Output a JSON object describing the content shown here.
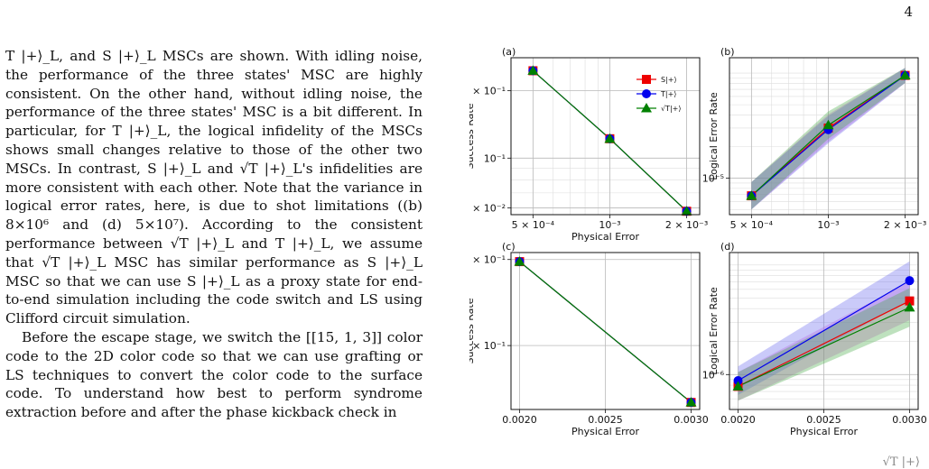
{
  "page_number": "4",
  "paragraphs": [
    "T |+⟩_L, and S |+⟩_L MSCs are shown. With idling noise, the performance of the three states' MSC are highly consistent. On the other hand, without idling noise, the performance of the three states' MSC is a bit different. In particular, for T |+⟩_L, the logical infidelity of the MSCs shows small changes relative to those of the other two MSCs. In contrast, S |+⟩_L and √T |+⟩_L's infidelities are more consistent with each other. Note that the variance in logical error rates, here, is due to shot limitations ((b) 8×10⁶ and (d) 5×10⁷). According to the consistent performance between √T |+⟩_L and T |+⟩_L, we assume that √T |+⟩_L MSC has similar performance as S |+⟩_L MSC so that we can use S |+⟩_L as a proxy state for end-to-end simulation including the code switch and LS using Clifford circuit simulation.",
    "Before the escape stage, we switch the [[15, 1, 3]] color code to the 2D color code so that we can use grafting or LS techniques to convert the color code to the surface code. To understand how best to perform syndrome extraction before and after the phase kickback check in"
  ],
  "bottom_fragment": "√T |+⟩",
  "chart_data": [
    {
      "panel": "(a)",
      "type": "line",
      "xscale": "log",
      "yscale": "log",
      "xlabel": "Physical Error",
      "ylabel": "Success Rate",
      "xlim": [
        0.00041,
        0.00225
      ],
      "ylim": [
        0.056,
        0.28
      ],
      "xticks": [
        {
          "v": 0.0005,
          "t": "5 × 10⁻⁴"
        },
        {
          "v": 0.001,
          "t": "10⁻³"
        },
        {
          "v": 0.002,
          "t": "2 × 10⁻³"
        }
      ],
      "yticks": [
        {
          "v": 0.06,
          "t": "6 × 10⁻²"
        },
        {
          "v": 0.1,
          "t": "10⁻¹"
        },
        {
          "v": 0.2,
          "t": "2 × 10⁻¹"
        }
      ],
      "x": [
        0.0005,
        0.001,
        0.002
      ],
      "legend": "top-right",
      "series": [
        {
          "name": "S|+⟩",
          "color": "#ee0000",
          "marker": "square",
          "values": [
            0.245,
            0.122,
            0.058
          ]
        },
        {
          "name": "T|+⟩",
          "color": "#0000ee",
          "marker": "circle",
          "values": [
            0.245,
            0.122,
            0.058
          ]
        },
        {
          "name": "√T|+⟩",
          "color": "#008000",
          "marker": "triangle",
          "values": [
            0.245,
            0.122,
            0.058
          ]
        }
      ]
    },
    {
      "panel": "(b)",
      "type": "line",
      "xscale": "log",
      "yscale": "log",
      "xlabel": "",
      "ylabel": "Logical Error Rate",
      "xlim": [
        0.00041,
        0.00225
      ],
      "ylim": [
        4.5e-06,
        0.00014
      ],
      "xticks": [
        {
          "v": 0.0005,
          "t": "5 × 10⁻⁴"
        },
        {
          "v": 0.001,
          "t": "10⁻³"
        },
        {
          "v": 0.002,
          "t": "2 × 10⁻³"
        }
      ],
      "yticks": [
        {
          "v": 1e-05,
          "t": "10⁻⁵"
        }
      ],
      "x": [
        0.0005,
        0.001,
        0.002
      ],
      "series": [
        {
          "name": "S|+⟩",
          "color": "#ee0000",
          "marker": "square",
          "values": [
            6.8e-06,
            3e-05,
            9.5e-05
          ]
        },
        {
          "name": "T|+⟩",
          "color": "#0000ee",
          "marker": "circle",
          "values": [
            6.8e-06,
            2.9e-05,
            9.5e-05
          ]
        },
        {
          "name": "√T|+⟩",
          "color": "#008000",
          "marker": "triangle",
          "values": [
            6.8e-06,
            3.2e-05,
            9.5e-05
          ]
        }
      ]
    },
    {
      "panel": "(c)",
      "type": "line",
      "xscale": "linear",
      "yscale": "log",
      "xlabel": "Physical Error",
      "ylabel": "Success Rate",
      "xlim": [
        0.00195,
        0.00305
      ],
      "ylim": [
        0.148,
        0.31
      ],
      "xticks": [
        {
          "v": 0.002,
          "t": "0.0020"
        },
        {
          "v": 0.0025,
          "t": "0.0025"
        },
        {
          "v": 0.003,
          "t": "0.0030"
        }
      ],
      "yticks": [
        {
          "v": 0.2,
          "t": "2 × 10⁻¹"
        },
        {
          "v": 0.3,
          "t": "3 × 10⁻¹"
        }
      ],
      "x": [
        0.002,
        0.003
      ],
      "series": [
        {
          "name": "S|+⟩",
          "color": "#ee0000",
          "marker": "square",
          "values": [
            0.297,
            0.153
          ]
        },
        {
          "name": "T|+⟩",
          "color": "#0000ee",
          "marker": "circle",
          "values": [
            0.297,
            0.153
          ]
        },
        {
          "name": "√T|+⟩",
          "color": "#008000",
          "marker": "triangle",
          "values": [
            0.297,
            0.153
          ]
        }
      ]
    },
    {
      "panel": "(d)",
      "type": "line",
      "xscale": "linear",
      "yscale": "log",
      "xlabel": "Physical Error",
      "ylabel": "Logical Error Rate",
      "xlim": [
        0.00195,
        0.00305
      ],
      "ylim": [
        4.8e-07,
        1.3e-05
      ],
      "xticks": [
        {
          "v": 0.002,
          "t": "0.0020"
        },
        {
          "v": 0.0025,
          "t": "0.0025"
        },
        {
          "v": 0.003,
          "t": "0.0030"
        }
      ],
      "yticks": [
        {
          "v": 1e-06,
          "t": "10⁻⁶"
        }
      ],
      "x": [
        0.002,
        0.003
      ],
      "series": [
        {
          "name": "S|+⟩",
          "color": "#ee0000",
          "marker": "square",
          "values": [
            7.8e-07,
            4.7e-06
          ]
        },
        {
          "name": "T|+⟩",
          "color": "#0000ee",
          "marker": "circle",
          "values": [
            8.8e-07,
            7.2e-06
          ]
        },
        {
          "name": "√T|+⟩",
          "color": "#008000",
          "marker": "triangle",
          "values": [
            7.8e-07,
            4.1e-06
          ]
        }
      ]
    }
  ]
}
